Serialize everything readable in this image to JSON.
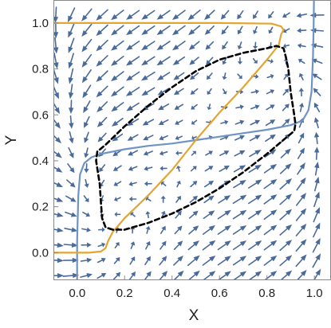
{
  "chart_data": {
    "type": "vector-field-phase-portrait",
    "xlabel": "X",
    "ylabel": "Y",
    "xlim": [
      -0.1,
      1.07
    ],
    "ylim": [
      -0.12,
      1.1
    ],
    "x_ticks": [
      "0.0",
      "0.2",
      "0.4",
      "0.6",
      "0.8",
      "1.0"
    ],
    "x_tick_values": [
      0.0,
      0.2,
      0.4,
      0.6,
      0.8,
      1.0
    ],
    "y_ticks": [
      "0.0",
      "0.2",
      "0.4",
      "0.6",
      "0.8",
      "1.0"
    ],
    "y_tick_values": [
      0.0,
      0.2,
      0.4,
      0.6,
      0.8,
      1.0
    ],
    "grid": false,
    "colors": {
      "vector_field": "#4a6b9a",
      "x_nullcline": "#6f93c4",
      "y_nullcline": "#e3a530",
      "limit_cycle": "#000000",
      "frame": "#888888"
    },
    "series": [
      {
        "kind": "x-nullcline",
        "style": "solid",
        "points": [
          [
            0.0,
            -0.12
          ],
          [
            0.0,
            0.05
          ],
          [
            0.005,
            0.25
          ],
          [
            0.012,
            0.34
          ],
          [
            0.03,
            0.39
          ],
          [
            0.06,
            0.415
          ],
          [
            0.1,
            0.43
          ],
          [
            0.2,
            0.45
          ],
          [
            0.3,
            0.465
          ],
          [
            0.4,
            0.475
          ],
          [
            0.5,
            0.49
          ],
          [
            0.6,
            0.505
          ],
          [
            0.7,
            0.52
          ],
          [
            0.8,
            0.535
          ],
          [
            0.9,
            0.555
          ],
          [
            0.95,
            0.575
          ],
          [
            0.975,
            0.62
          ],
          [
            0.988,
            0.7
          ],
          [
            0.994,
            0.85
          ],
          [
            0.997,
            1.0
          ],
          [
            0.998,
            1.1
          ]
        ]
      },
      {
        "kind": "y-nullcline",
        "style": "solid",
        "points": [
          [
            -0.1,
            0.0
          ],
          [
            0.05,
            0.0
          ],
          [
            0.1,
            0.005
          ],
          [
            0.12,
            0.02
          ],
          [
            0.13,
            0.05
          ],
          [
            0.15,
            0.09
          ],
          [
            0.2,
            0.15
          ],
          [
            0.3,
            0.25
          ],
          [
            0.4,
            0.36
          ],
          [
            0.5,
            0.49
          ],
          [
            0.6,
            0.61
          ],
          [
            0.7,
            0.72
          ],
          [
            0.8,
            0.84
          ],
          [
            0.85,
            0.905
          ],
          [
            0.86,
            0.95
          ],
          [
            0.87,
            0.97
          ],
          [
            0.86,
            0.985
          ],
          [
            0.82,
            0.997
          ],
          [
            0.6,
            1.0
          ],
          [
            -0.1,
            1.0
          ]
        ]
      },
      {
        "kind": "limit-cycle",
        "style": "dashed",
        "points": [
          [
            0.15,
            0.1
          ],
          [
            0.12,
            0.11
          ],
          [
            0.105,
            0.15
          ],
          [
            0.1,
            0.22
          ],
          [
            0.095,
            0.3
          ],
          [
            0.08,
            0.4
          ],
          [
            0.085,
            0.44
          ],
          [
            0.12,
            0.47
          ],
          [
            0.2,
            0.55
          ],
          [
            0.3,
            0.64
          ],
          [
            0.4,
            0.72
          ],
          [
            0.5,
            0.79
          ],
          [
            0.6,
            0.84
          ],
          [
            0.7,
            0.87
          ],
          [
            0.8,
            0.89
          ],
          [
            0.84,
            0.9
          ],
          [
            0.87,
            0.89
          ],
          [
            0.88,
            0.85
          ],
          [
            0.89,
            0.8
          ],
          [
            0.9,
            0.7
          ],
          [
            0.915,
            0.6
          ],
          [
            0.92,
            0.56
          ],
          [
            0.915,
            0.53
          ],
          [
            0.88,
            0.5
          ],
          [
            0.8,
            0.43
          ],
          [
            0.7,
            0.35
          ],
          [
            0.6,
            0.28
          ],
          [
            0.5,
            0.22
          ],
          [
            0.4,
            0.17
          ],
          [
            0.3,
            0.13
          ],
          [
            0.2,
            0.1
          ],
          [
            0.15,
            0.1
          ]
        ]
      }
    ],
    "vector_field": {
      "x_start": -0.09,
      "x_step": 0.0647,
      "y_start": -0.1,
      "y_step": 0.0667
    }
  }
}
